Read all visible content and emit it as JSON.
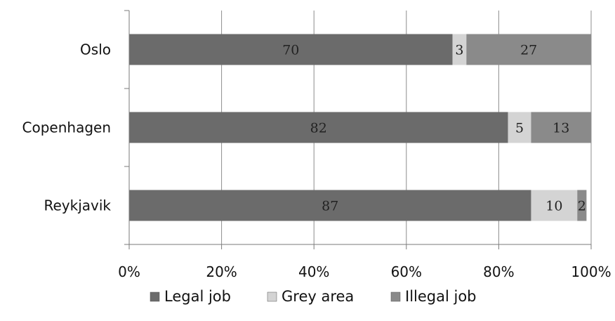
{
  "chart_data": {
    "type": "bar",
    "orientation": "horizontal",
    "stacked": "percent",
    "categories": [
      "Oslo",
      "Copenhagen",
      "Reykjavik"
    ],
    "series": [
      {
        "name": "Legal job",
        "values": [
          70,
          82,
          87
        ],
        "color": "#6b6b6b"
      },
      {
        "name": "Grey area",
        "values": [
          3,
          5,
          10
        ],
        "color": "#d4d4d4"
      },
      {
        "name": "Illegal job",
        "values": [
          27,
          13,
          2
        ],
        "color": "#8a8a8a"
      }
    ],
    "x_ticks": [
      "0%",
      "20%",
      "40%",
      "60%",
      "80%",
      "100%"
    ],
    "xlim": [
      0,
      100
    ],
    "grid": true,
    "legend_position": "bottom",
    "title": "",
    "xlabel": "",
    "ylabel": ""
  }
}
